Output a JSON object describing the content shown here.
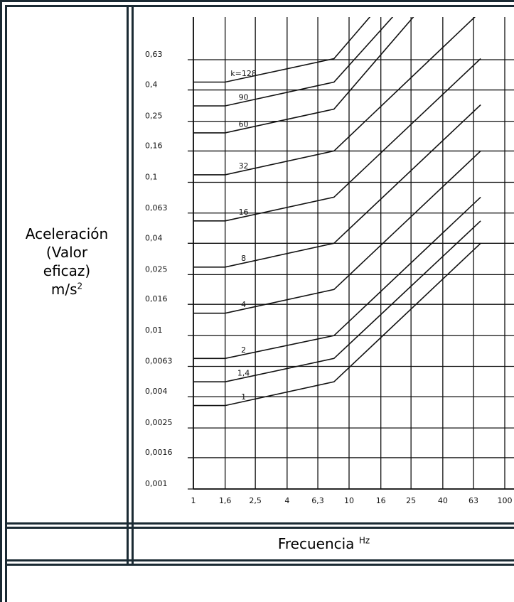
{
  "left_label": {
    "line1": "Aceleración",
    "line2": "(Valor",
    "line3": "eficaz)",
    "unit_base": "m/s",
    "unit_sup": "2"
  },
  "bottom_label": {
    "text": "Frecuencia",
    "unit": "Hz"
  },
  "colors": {
    "border": "#1a2a33",
    "ink": "#111111"
  },
  "chart_data": {
    "type": "line",
    "x_scale": "log",
    "y_scale": "log",
    "xlim": [
      1,
      100
    ],
    "ylim": [
      0.001,
      0.63
    ],
    "grid": true,
    "x_ticks": [
      "1",
      "1,6",
      "2,5",
      "4",
      "6,3",
      "10",
      "16",
      "25",
      "40",
      "63",
      "100"
    ],
    "x_tick_values": [
      1,
      1.6,
      2.5,
      4,
      6.3,
      10,
      16,
      25,
      40,
      63,
      100
    ],
    "y_ticks": [
      "0,63",
      "0,4",
      "0,25",
      "0,16",
      "0,1",
      "0,063",
      "0,04",
      "0,025",
      "0,016",
      "0,01",
      "0,0063",
      "0,004",
      "0,0025",
      "0,0016",
      "0,001"
    ],
    "y_tick_values": [
      0.63,
      0.4,
      0.25,
      0.16,
      0.1,
      0.063,
      0.04,
      0.025,
      0.016,
      0.01,
      0.0063,
      0.004,
      0.0025,
      0.0016,
      0.001
    ],
    "series": [
      {
        "name": "k=128",
        "label": "k=128",
        "points": [
          [
            1,
            0.45
          ],
          [
            1.6,
            0.45
          ],
          [
            8,
            0.64
          ],
          [
            21,
            2.0
          ]
        ]
      },
      {
        "name": "90",
        "label": "90",
        "points": [
          [
            1,
            0.315
          ],
          [
            1.6,
            0.315
          ],
          [
            8,
            0.45
          ],
          [
            30,
            2.0
          ]
        ]
      },
      {
        "name": "60",
        "label": "60",
        "points": [
          [
            1,
            0.21
          ],
          [
            1.6,
            0.21
          ],
          [
            8,
            0.3
          ],
          [
            40,
            2.0
          ]
        ]
      },
      {
        "name": "32",
        "label": "32",
        "points": [
          [
            1,
            0.112
          ],
          [
            1.6,
            0.112
          ],
          [
            8,
            0.16
          ],
          [
            70,
            1.3
          ]
        ]
      },
      {
        "name": "16",
        "label": "16",
        "points": [
          [
            1,
            0.056
          ],
          [
            1.6,
            0.056
          ],
          [
            8,
            0.08
          ],
          [
            70,
            0.64
          ]
        ]
      },
      {
        "name": "8",
        "label": "8",
        "points": [
          [
            1,
            0.028
          ],
          [
            1.6,
            0.028
          ],
          [
            8,
            0.04
          ],
          [
            70,
            0.32
          ]
        ]
      },
      {
        "name": "4",
        "label": "4",
        "points": [
          [
            1,
            0.014
          ],
          [
            1.6,
            0.014
          ],
          [
            8,
            0.02
          ],
          [
            70,
            0.16
          ]
        ]
      },
      {
        "name": "2",
        "label": "2",
        "points": [
          [
            1,
            0.0071
          ],
          [
            1.6,
            0.0071
          ],
          [
            8,
            0.01
          ],
          [
            70,
            0.08
          ]
        ]
      },
      {
        "name": "1,4",
        "label": "1,4",
        "points": [
          [
            1,
            0.005
          ],
          [
            1.6,
            0.005
          ],
          [
            8,
            0.0071
          ],
          [
            70,
            0.056
          ]
        ]
      },
      {
        "name": "1",
        "label": "1",
        "points": [
          [
            1,
            0.0035
          ],
          [
            1.6,
            0.0035
          ],
          [
            8,
            0.005
          ],
          [
            70,
            0.04
          ]
        ]
      }
    ]
  }
}
